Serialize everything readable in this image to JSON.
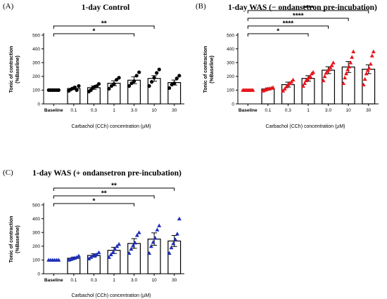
{
  "chart_data": [
    {
      "type": "bar",
      "panel": "(A)",
      "title": "1-day Control",
      "xlabel": "Carbachol (CCh) concentration (µM)",
      "ylabel": "Tonic of contraction\n(%Baseline)",
      "ylim": [
        0,
        500
      ],
      "yticks": [
        0,
        100,
        200,
        300,
        400,
        500
      ],
      "categories": [
        "Baseline",
        "0.1",
        "0.3",
        "1",
        "3.0",
        "10",
        "30"
      ],
      "values": [
        100,
        112,
        118,
        150,
        172,
        185,
        155
      ],
      "errors": [
        0,
        8,
        12,
        18,
        25,
        20,
        18
      ],
      "points": [
        [
          100,
          100,
          100,
          100,
          100,
          100
        ],
        [
          95,
          105,
          112,
          120,
          100,
          130
        ],
        [
          90,
          100,
          115,
          125,
          130,
          145
        ],
        [
          110,
          130,
          145,
          175,
          190
        ],
        [
          130,
          150,
          165,
          205,
          230
        ],
        [
          130,
          160,
          190,
          225,
          250
        ],
        [
          115,
          140,
          150,
          185,
          205
        ]
      ],
      "marker": "circle",
      "color": "#000000",
      "significance": [
        {
          "from": "Baseline",
          "to": "10",
          "label": "**"
        },
        {
          "from": "Baseline",
          "to": "3.0",
          "label": "*"
        }
      ]
    },
    {
      "type": "bar",
      "panel": "(B)",
      "title": "1-day WAS (− ondansetron pre-incubation)",
      "xlabel": "Carbachol (CCh) concentration (µM)",
      "ylabel": "Tonic of contraction\n(%Baseline)",
      "ylim": [
        0,
        500
      ],
      "yticks": [
        0,
        100,
        200,
        300,
        400,
        500
      ],
      "categories": [
        "Baseline",
        "0.1",
        "0.3",
        "1",
        "3.0",
        "10",
        "30"
      ],
      "values": [
        100,
        108,
        140,
        185,
        245,
        268,
        252
      ],
      "errors": [
        0,
        8,
        18,
        20,
        25,
        40,
        32
      ],
      "points": [
        [
          100,
          100,
          100,
          100,
          100,
          100,
          100,
          100,
          100
        ],
        [
          95,
          100,
          105,
          110,
          112,
          115,
          120
        ],
        [
          95,
          110,
          125,
          140,
          150,
          160,
          175
        ],
        [
          130,
          150,
          170,
          180,
          190,
          200,
          220,
          230
        ],
        [
          170,
          200,
          225,
          240,
          250,
          265,
          280,
          300
        ],
        [
          150,
          190,
          220,
          250,
          270,
          300,
          340,
          380
        ],
        [
          140,
          180,
          220,
          245,
          260,
          290,
          350,
          380
        ]
      ],
      "marker": "triangle",
      "color": "#e8141b",
      "significance": [
        {
          "from": "Baseline",
          "to": "30",
          "label": "****"
        },
        {
          "from": "Baseline",
          "to": "10",
          "label": "****"
        },
        {
          "from": "Baseline",
          "to": "3.0",
          "label": "****"
        },
        {
          "from": "Baseline",
          "to": "1",
          "label": "*"
        }
      ]
    },
    {
      "type": "bar",
      "panel": "(C)",
      "title": "1-day WAS (+ ondansetron pre-incubation)",
      "xlabel": "Carbachol (CCh) concentration (µM)",
      "ylabel": "Tonic of contraction\n(%Baseline)",
      "ylim": [
        0,
        500
      ],
      "yticks": [
        0,
        100,
        200,
        300,
        400,
        500
      ],
      "categories": [
        "Baseline",
        "0.1",
        "0.3",
        "1",
        "3.0",
        "10",
        "30"
      ],
      "values": [
        100,
        113,
        133,
        170,
        220,
        252,
        238
      ],
      "errors": [
        0,
        8,
        12,
        22,
        35,
        45,
        40
      ],
      "points": [
        [
          100,
          100,
          100,
          100,
          100,
          100
        ],
        [
          100,
          105,
          110,
          115,
          120,
          130
        ],
        [
          110,
          120,
          130,
          135,
          140,
          155
        ],
        [
          120,
          140,
          155,
          180,
          200,
          215
        ],
        [
          150,
          180,
          205,
          225,
          280,
          300
        ],
        [
          150,
          200,
          230,
          260,
          320,
          350
        ],
        [
          150,
          190,
          220,
          250,
          290,
          400
        ]
      ],
      "marker": "triangle",
      "color": "#1f2fb8",
      "significance": [
        {
          "from": "Baseline",
          "to": "30",
          "label": "**"
        },
        {
          "from": "Baseline",
          "to": "10",
          "label": "**"
        },
        {
          "from": "Baseline",
          "to": "3.0",
          "label": "*"
        }
      ]
    }
  ]
}
